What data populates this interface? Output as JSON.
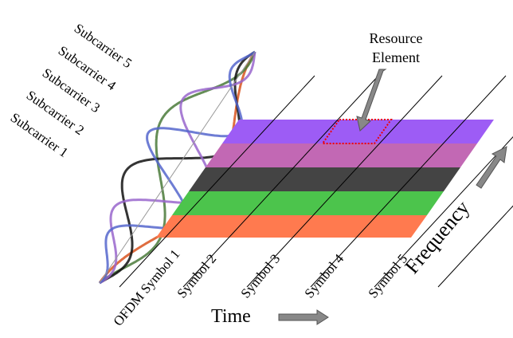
{
  "subcarriers": [
    "Subcarrier 5",
    "Subcarrier 4",
    "Subcarrier 3",
    "Subcarrier 2",
    "Subcarrier 1"
  ],
  "resource_element": {
    "line1": "Resource",
    "line2": "Element"
  },
  "symbols": [
    "OFDM Symbol 1",
    "Symbol 2",
    "Symbol 3",
    "Symbol 4",
    "Symbol 5"
  ],
  "time_label": "Time",
  "frequency_label": "Frequency"
}
